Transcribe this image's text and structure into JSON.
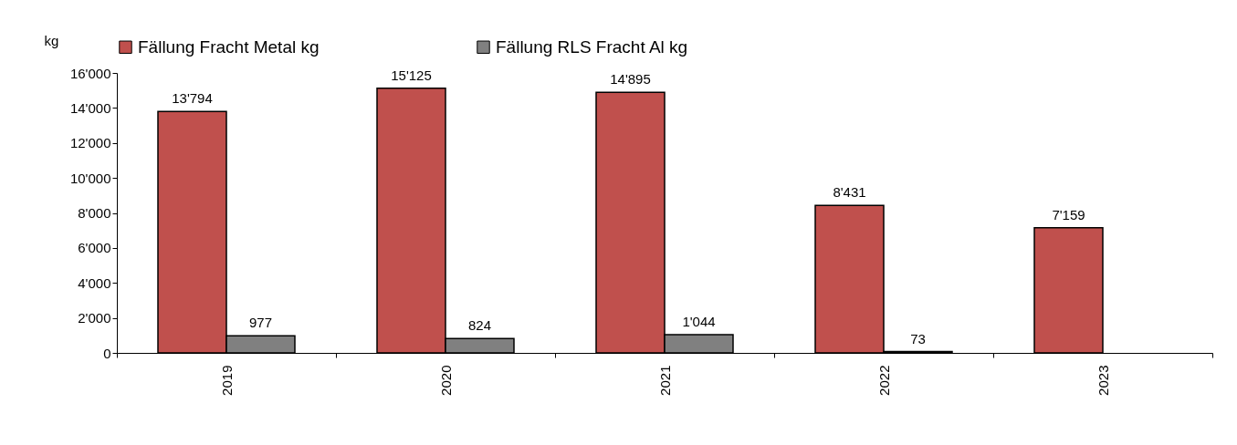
{
  "chart_data": {
    "type": "bar",
    "ylabel": "kg",
    "categories": [
      "2019",
      "2020",
      "2021",
      "2022",
      "2023"
    ],
    "series": [
      {
        "name": "Fällung Fracht Metal kg",
        "color": "#c0504d",
        "values": [
          13794,
          15125,
          14895,
          8431,
          7159
        ],
        "value_labels": [
          "13'794",
          "15'125",
          "14'895",
          "8'431",
          "7'159"
        ]
      },
      {
        "name": "Fällung RLS Fracht Al kg",
        "color": "#808080",
        "values": [
          977,
          824,
          1044,
          73,
          null
        ],
        "value_labels": [
          "977",
          "824",
          "1'044",
          "73",
          null
        ]
      }
    ],
    "ylim": [
      0,
      16000
    ],
    "yticks": [
      0,
      {
        "value": 2000,
        "label": "2'000"
      },
      {
        "value": 4000,
        "label": "4'000"
      },
      {
        "value": 6000,
        "label": "6'000"
      },
      {
        "value": 8000,
        "label": "8'000"
      },
      {
        "value": 10000,
        "label": "10'000"
      },
      {
        "value": 12000,
        "label": "12'000"
      },
      {
        "value": 14000,
        "label": "14'000"
      },
      {
        "value": 16000,
        "label": "16'000"
      }
    ],
    "legend": "top"
  }
}
